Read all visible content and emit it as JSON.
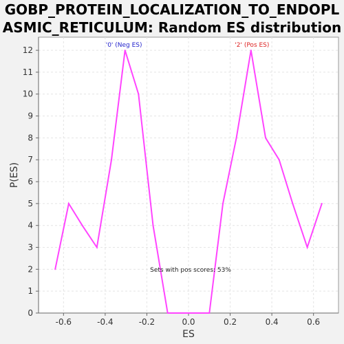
{
  "chart_data": {
    "type": "line",
    "title_line1": "GOBP_PROTEIN_LOCALIZATION_TO_ENDOPL",
    "title_line2": "ASMIC_RETICULUM: Random ES distribution",
    "xlabel": "ES",
    "ylabel": "P(ES)",
    "xlim": [
      -0.72,
      0.72
    ],
    "ylim": [
      0,
      12.6
    ],
    "xticks": [
      -0.6,
      -0.4,
      -0.2,
      0.0,
      0.2,
      0.4,
      0.6
    ],
    "xtick_labels": [
      "-0.6",
      "-0.4",
      "-0.2",
      "0.0",
      "0.2",
      "0.4",
      "0.6"
    ],
    "yticks": [
      0,
      1,
      2,
      3,
      4,
      5,
      6,
      7,
      8,
      9,
      10,
      11,
      12
    ],
    "grid": true,
    "series": [
      {
        "color": "#ff44ff",
        "x": [
          -0.64,
          -0.575,
          -0.51,
          -0.44,
          -0.37,
          -0.305,
          -0.24,
          -0.17,
          -0.1,
          -0.035,
          0.03,
          0.1,
          0.165,
          0.23,
          0.3,
          0.37,
          0.435,
          0.5,
          0.57,
          0.64
        ],
        "y": [
          2,
          5,
          4,
          3,
          7,
          12,
          10,
          4,
          0,
          0,
          0,
          0,
          5,
          8,
          12,
          8,
          7,
          5,
          3,
          5
        ]
      }
    ],
    "annotations": {
      "neg_label": "'0' (Neg ES)",
      "neg_color": "#2222cc",
      "pos_label": "'2' (Pos ES)",
      "pos_color": "#dd2222",
      "pos_scores": "Sets with pos scores: 53%"
    }
  }
}
